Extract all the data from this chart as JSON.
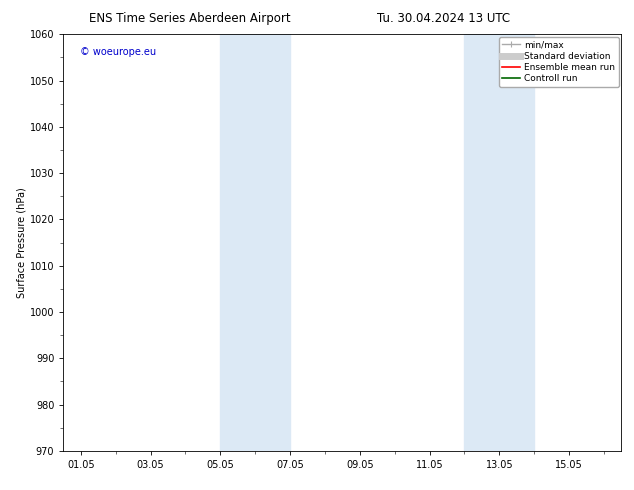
{
  "title_left": "ENS Time Series Aberdeen Airport",
  "title_right": "Tu. 30.04.2024 13 UTC",
  "ylabel": "Surface Pressure (hPa)",
  "ylim": [
    970,
    1060
  ],
  "yticks": [
    970,
    980,
    990,
    1000,
    1010,
    1020,
    1030,
    1040,
    1050,
    1060
  ],
  "xtick_labels": [
    "01.05",
    "03.05",
    "05.05",
    "07.05",
    "09.05",
    "11.05",
    "13.05",
    "15.05"
  ],
  "xtick_positions": [
    0,
    2,
    4,
    6,
    8,
    10,
    12,
    14
  ],
  "xlim": [
    -0.5,
    15.5
  ],
  "shaded_bands": [
    {
      "x_start": 4.0,
      "x_end": 6.0
    },
    {
      "x_start": 11.0,
      "x_end": 13.0
    }
  ],
  "shaded_color": "#dce9f5",
  "watermark_text": "© woeurope.eu",
  "watermark_color": "#0000cc",
  "legend_entries": [
    {
      "label": "min/max",
      "color": "#aaaaaa",
      "lw": 1
    },
    {
      "label": "Standard deviation",
      "color": "#cccccc",
      "lw": 5
    },
    {
      "label": "Ensemble mean run",
      "color": "#ff0000",
      "lw": 1.2
    },
    {
      "label": "Controll run",
      "color": "#006600",
      "lw": 1.2
    }
  ],
  "bg_color": "#ffffff",
  "tick_fontsize": 7,
  "ylabel_fontsize": 7,
  "title_fontsize": 8.5,
  "watermark_fontsize": 7,
  "legend_fontsize": 6.5
}
